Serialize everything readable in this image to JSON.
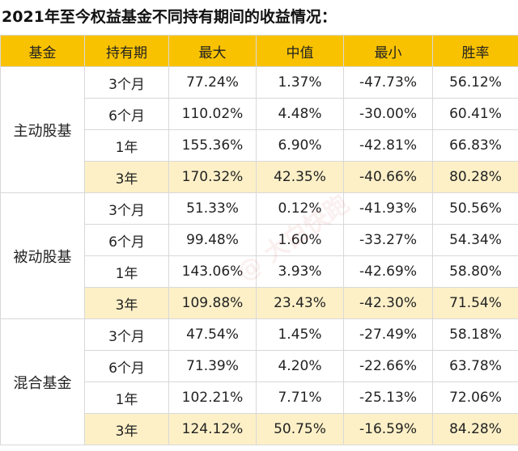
{
  "title": "2021年至今权益基金不同持有期间的收益情况：",
  "headers": [
    "基金",
    "持有期",
    "最大",
    "中值",
    "最小",
    "胜率"
  ],
  "watermark": "@ 大白快跑",
  "groups": [
    {
      "name": "主动股基",
      "rows": [
        {
          "period": "3个月",
          "max": "77.24%",
          "median": "1.37%",
          "min": "-47.73%",
          "win": "56.12%"
        },
        {
          "period": "6个月",
          "max": "110.02%",
          "median": "4.48%",
          "min": "-30.00%",
          "win": "60.41%"
        },
        {
          "period": "1年",
          "max": "155.36%",
          "median": "6.90%",
          "min": "-42.81%",
          "win": "66.83%"
        },
        {
          "period": "3年",
          "max": "170.32%",
          "median": "42.35%",
          "min": "-40.66%",
          "win": "80.28%"
        }
      ]
    },
    {
      "name": "被动股基",
      "rows": [
        {
          "period": "3个月",
          "max": "51.33%",
          "median": "0.12%",
          "min": "-41.93%",
          "win": "50.56%"
        },
        {
          "period": "6个月",
          "max": "99.48%",
          "median": "1.60%",
          "min": "-33.27%",
          "win": "54.34%"
        },
        {
          "period": "1年",
          "max": "143.06%",
          "median": "3.93%",
          "min": "-42.69%",
          "win": "58.80%"
        },
        {
          "period": "3年",
          "max": "109.88%",
          "median": "23.43%",
          "min": "-42.30%",
          "win": "71.54%"
        }
      ]
    },
    {
      "name": "混合基金",
      "rows": [
        {
          "period": "3个月",
          "max": "47.54%",
          "median": "1.45%",
          "min": "-27.49%",
          "win": "58.18%"
        },
        {
          "period": "6个月",
          "max": "71.39%",
          "median": "4.20%",
          "min": "-22.66%",
          "win": "63.78%"
        },
        {
          "period": "1年",
          "max": "102.21%",
          "median": "7.71%",
          "min": "-25.13%",
          "win": "72.06%"
        },
        {
          "period": "3年",
          "max": "124.12%",
          "median": "50.75%",
          "min": "-16.59%",
          "win": "84.28%"
        }
      ]
    }
  ]
}
